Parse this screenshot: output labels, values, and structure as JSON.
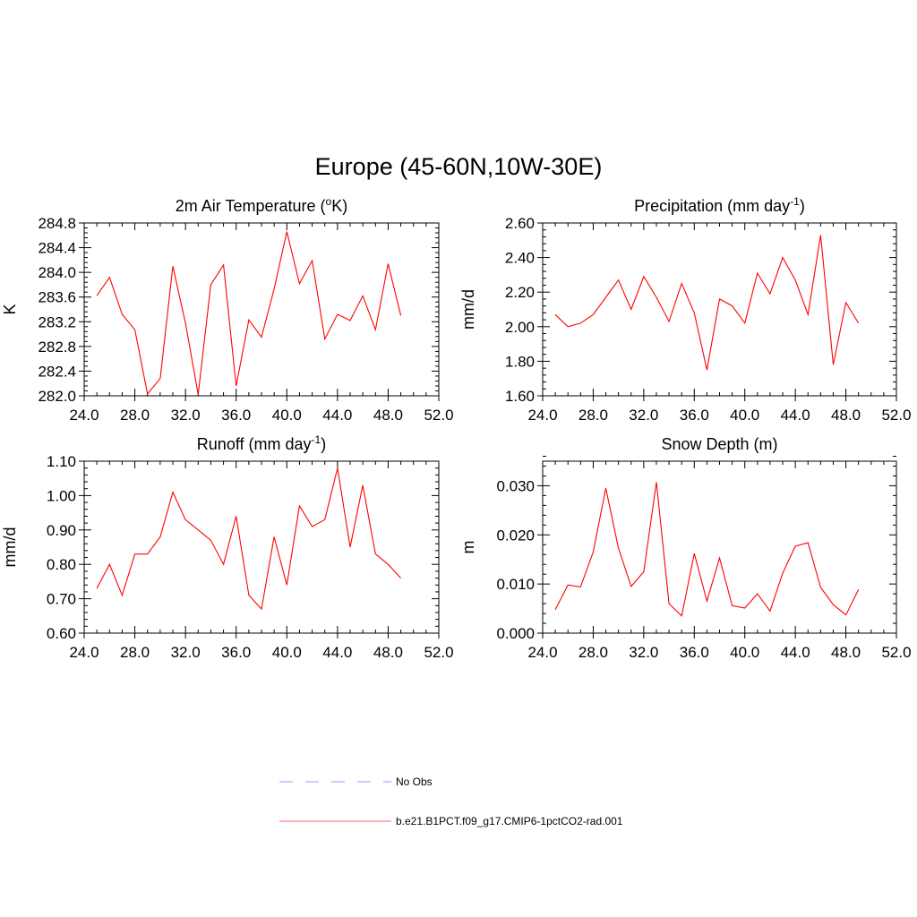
{
  "figure": {
    "title": "Europe (45-60N,10W-30E)"
  },
  "legend": {
    "items": [
      {
        "label": "No Obs",
        "color": "#9999ff",
        "style": "dashed"
      },
      {
        "label": "b.e21.B1PCT.f09_g17.CMIP6-1pctCO2-rad.001",
        "color": "#ff0000",
        "style": "solid"
      }
    ]
  },
  "chart_data": [
    {
      "type": "line",
      "title": "2m Air Temperature (",
      "title_sup": "o",
      "title_after": "K)",
      "ylabel": "K",
      "xlim": [
        24,
        52
      ],
      "ylim": [
        282.0,
        284.8
      ],
      "xticks": [
        "24.0",
        "28.0",
        "32.0",
        "36.0",
        "40.0",
        "44.0",
        "48.0",
        "52.0"
      ],
      "yticks": [
        "282.0",
        "282.4",
        "282.8",
        "283.2",
        "283.6",
        "284.0",
        "284.4",
        "284.8"
      ],
      "series": [
        {
          "color": "#ff0000",
          "x": [
            25,
            26,
            27,
            28,
            29,
            30,
            31,
            32,
            33,
            34,
            35,
            36,
            37,
            38,
            39,
            40,
            41,
            42,
            43,
            44,
            45,
            46,
            47,
            48,
            49
          ],
          "y": [
            283.62,
            283.92,
            283.32,
            283.07,
            282.03,
            282.28,
            284.1,
            283.18,
            282.02,
            283.8,
            284.12,
            282.16,
            283.23,
            282.95,
            283.73,
            284.66,
            283.82,
            284.19,
            282.92,
            283.32,
            283.22,
            283.62,
            283.07,
            284.14,
            283.3
          ]
        }
      ]
    },
    {
      "type": "line",
      "title": "Precipitation (mm day",
      "title_sup": "-1",
      "title_after": ")",
      "ylabel": "mm/d",
      "xlim": [
        24,
        52
      ],
      "ylim": [
        1.6,
        2.6
      ],
      "xticks": [
        "24.0",
        "28.0",
        "32.0",
        "36.0",
        "40.0",
        "44.0",
        "48.0",
        "52.0"
      ],
      "yticks": [
        "1.60",
        "1.80",
        "2.00",
        "2.20",
        "2.40",
        "2.60"
      ],
      "series": [
        {
          "color": "#ff0000",
          "x": [
            25,
            26,
            27,
            28,
            29,
            30,
            31,
            32,
            33,
            34,
            35,
            36,
            37,
            38,
            39,
            40,
            41,
            42,
            43,
            44,
            45,
            46,
            47,
            48,
            49
          ],
          "y": [
            2.07,
            2.0,
            2.02,
            2.07,
            2.17,
            2.27,
            2.1,
            2.29,
            2.17,
            2.03,
            2.25,
            2.08,
            1.75,
            2.16,
            2.12,
            2.02,
            2.31,
            2.19,
            2.4,
            2.27,
            2.07,
            2.53,
            1.78,
            2.14,
            2.02
          ]
        }
      ]
    },
    {
      "type": "line",
      "title": "Runoff (mm day",
      "title_sup": "-1",
      "title_after": ")",
      "ylabel": "mm/d",
      "xlim": [
        24,
        52
      ],
      "ylim": [
        0.6,
        1.1
      ],
      "xticks": [
        "24.0",
        "28.0",
        "32.0",
        "36.0",
        "40.0",
        "44.0",
        "48.0",
        "52.0"
      ],
      "yticks": [
        "0.60",
        "0.70",
        "0.80",
        "0.90",
        "1.00",
        "1.10"
      ],
      "series": [
        {
          "color": "#ff0000",
          "x": [
            25,
            26,
            27,
            28,
            29,
            30,
            31,
            32,
            33,
            34,
            35,
            36,
            37,
            38,
            39,
            40,
            41,
            42,
            43,
            44,
            45,
            46,
            47,
            48,
            49
          ],
          "y": [
            0.73,
            0.8,
            0.71,
            0.83,
            0.83,
            0.88,
            1.01,
            0.93,
            0.9,
            0.87,
            0.8,
            0.94,
            0.71,
            0.67,
            0.88,
            0.74,
            0.97,
            0.91,
            0.93,
            1.08,
            0.85,
            1.03,
            0.83,
            0.8,
            0.76
          ]
        }
      ]
    },
    {
      "type": "line",
      "title": "Snow Depth (m)",
      "title_sup": "",
      "title_after": "",
      "ylabel": "m",
      "xlim": [
        24,
        52
      ],
      "ylim": [
        0.0,
        0.035
      ],
      "xticks": [
        "24.0",
        "28.0",
        "32.0",
        "36.0",
        "40.0",
        "44.0",
        "48.0",
        "52.0"
      ],
      "yticks": [
        "0.000",
        "0.010",
        "0.020",
        "0.030"
      ],
      "series": [
        {
          "color": "#ff0000",
          "x": [
            25,
            26,
            27,
            28,
            29,
            30,
            31,
            32,
            33,
            34,
            35,
            36,
            37,
            38,
            39,
            40,
            41,
            42,
            43,
            44,
            45,
            46,
            47,
            48,
            49
          ],
          "y": [
            0.0048,
            0.0098,
            0.0094,
            0.0165,
            0.0295,
            0.0173,
            0.0095,
            0.0125,
            0.0307,
            0.006,
            0.0035,
            0.0162,
            0.0065,
            0.0153,
            0.0056,
            0.0051,
            0.008,
            0.0045,
            0.0122,
            0.0177,
            0.0184,
            0.0093,
            0.0058,
            0.0037,
            0.0089
          ]
        }
      ]
    }
  ]
}
